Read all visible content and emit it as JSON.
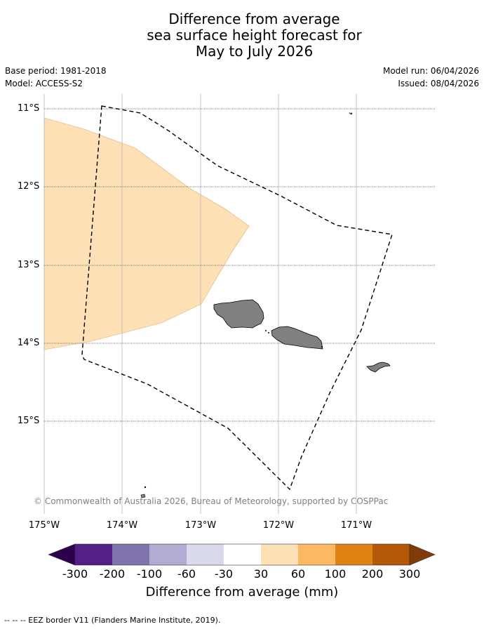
{
  "title": {
    "line1": "Difference from average",
    "line2": "sea surface height forecast for",
    "line3": "May to July 2026"
  },
  "meta": {
    "base_period": "Base period: 1981-2018",
    "model": "Model: ACCESS-S2",
    "model_run": "Model run: 06/04/2026",
    "issued": "Issued: 08/04/2026"
  },
  "map": {
    "lat_labels": [
      "11°S",
      "12°S",
      "13°S",
      "14°S",
      "15°S"
    ],
    "lon_labels": [
      "175°W",
      "174°W",
      "173°W",
      "172°W",
      "171°W"
    ],
    "copyright": "© Commonwealth of Australia 2026, Bureau of Meteorology, supported by COSPPac",
    "land_color": "#808080",
    "anomaly_fill_color": "#fde0b6",
    "anomaly_category": "30 to 60",
    "eez_line_style": "dashed black"
  },
  "colorbar": {
    "ticks": [
      "-300",
      "-200",
      "-100",
      "-60",
      "-30",
      "30",
      "60",
      "100",
      "200",
      "300"
    ],
    "colors": [
      "#541f87",
      "#8073ac",
      "#b2abd2",
      "#d8daeb",
      "#ffffff",
      "#fde0b6",
      "#fdb863",
      "#e08214",
      "#b35806"
    ],
    "extend_low_color": "#2d004b",
    "extend_high_color": "#7f3b08",
    "label": "Difference from average (mm)"
  },
  "footer": {
    "legend_line": "--  --  -- EEZ border V11 (Flanders Marine Institute, 2019)."
  }
}
